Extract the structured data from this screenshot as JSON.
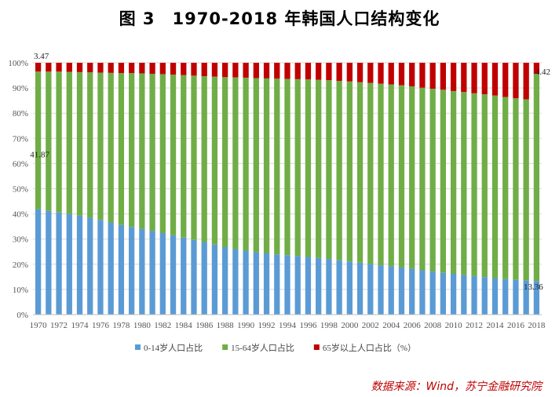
{
  "title": "图 3　1970-2018 年韩国人口结构变化",
  "source": "数据来源：Wind，苏宁金融研究院",
  "chart_data": {
    "type": "bar",
    "stacked": true,
    "title": "图 3　1970-2018 年韩国人口结构变化",
    "categories": [
      "1970",
      "1971",
      "1972",
      "1973",
      "1974",
      "1975",
      "1976",
      "1977",
      "1978",
      "1979",
      "1980",
      "1981",
      "1982",
      "1983",
      "1984",
      "1985",
      "1986",
      "1987",
      "1988",
      "1989",
      "1990",
      "1991",
      "1992",
      "1993",
      "1994",
      "1995",
      "1996",
      "1997",
      "1998",
      "1999",
      "2000",
      "2001",
      "2002",
      "2003",
      "2004",
      "2005",
      "2006",
      "2007",
      "2008",
      "2009",
      "2010",
      "2011",
      "2012",
      "2013",
      "2014",
      "2015",
      "2016",
      "2017",
      "2018"
    ],
    "x_tick_labels": [
      "1970",
      "1972",
      "1974",
      "1976",
      "1978",
      "1980",
      "1982",
      "1984",
      "1986",
      "1988",
      "1990",
      "1992",
      "1994",
      "1996",
      "1998",
      "2000",
      "2002",
      "2004",
      "2006",
      "2008",
      "2010",
      "2012",
      "2014",
      "2016",
      "2018"
    ],
    "y_tick_labels": [
      "0%",
      "10%",
      "20%",
      "30%",
      "40%",
      "50%",
      "60%",
      "70%",
      "80%",
      "90%",
      "100%"
    ],
    "ylim": [
      0,
      100
    ],
    "legend_position": "bottom",
    "series": [
      {
        "name": "0-14岁人口占比",
        "color": "#5b9bd5",
        "values": [
          41.87,
          41.2,
          40.6,
          40.0,
          39.3,
          38.5,
          37.6,
          36.6,
          35.6,
          34.8,
          34.0,
          33.2,
          32.4,
          31.5,
          30.6,
          29.7,
          28.8,
          27.8,
          26.8,
          26.0,
          25.4,
          24.8,
          24.3,
          23.9,
          23.6,
          23.3,
          22.9,
          22.5,
          22.1,
          21.6,
          21.1,
          20.6,
          20.1,
          19.6,
          19.2,
          18.7,
          18.2,
          17.6,
          17.1,
          16.6,
          16.2,
          15.7,
          15.3,
          14.9,
          14.5,
          14.1,
          13.8,
          13.5,
          13.36
        ]
      },
      {
        "name": "15-64岁人口占比",
        "color": "#70ad47",
        "values": [
          54.66,
          55.3,
          55.9,
          56.4,
          57.0,
          57.7,
          58.5,
          59.4,
          60.3,
          61.1,
          61.8,
          62.4,
          63.1,
          63.8,
          64.5,
          65.2,
          65.9,
          66.7,
          67.5,
          68.2,
          68.7,
          69.1,
          69.5,
          69.8,
          70.0,
          70.2,
          70.5,
          70.8,
          71.0,
          71.2,
          71.5,
          71.7,
          71.9,
          72.1,
          72.2,
          72.4,
          72.4,
          72.5,
          72.6,
          72.7,
          72.6,
          72.7,
          72.6,
          72.6,
          72.5,
          72.3,
          72.1,
          72.0,
          82.22
        ]
      },
      {
        "name": "65岁以上人口占比（%）",
        "color": "#c00000",
        "values": [
          3.47,
          3.5,
          3.5,
          3.6,
          3.7,
          3.8,
          3.9,
          4.0,
          4.1,
          4.1,
          4.2,
          4.4,
          4.5,
          4.7,
          4.9,
          5.1,
          5.3,
          5.5,
          5.7,
          5.8,
          5.9,
          6.1,
          6.2,
          6.3,
          6.4,
          6.5,
          6.6,
          6.7,
          6.9,
          7.2,
          7.4,
          7.7,
          8.0,
          8.3,
          8.6,
          8.9,
          9.4,
          9.9,
          10.3,
          10.7,
          11.2,
          11.6,
          12.1,
          12.5,
          13.0,
          13.6,
          14.1,
          14.5,
          4.42
        ]
      }
    ],
    "annotations": [
      {
        "text": "3.47",
        "series": 2,
        "index": 0
      },
      {
        "text": "41.87",
        "series": 0,
        "index": 0
      },
      {
        "text": "4.42",
        "series": 2,
        "index": 48
      },
      {
        "text": "13.36",
        "series": 0,
        "index": 48
      }
    ]
  }
}
